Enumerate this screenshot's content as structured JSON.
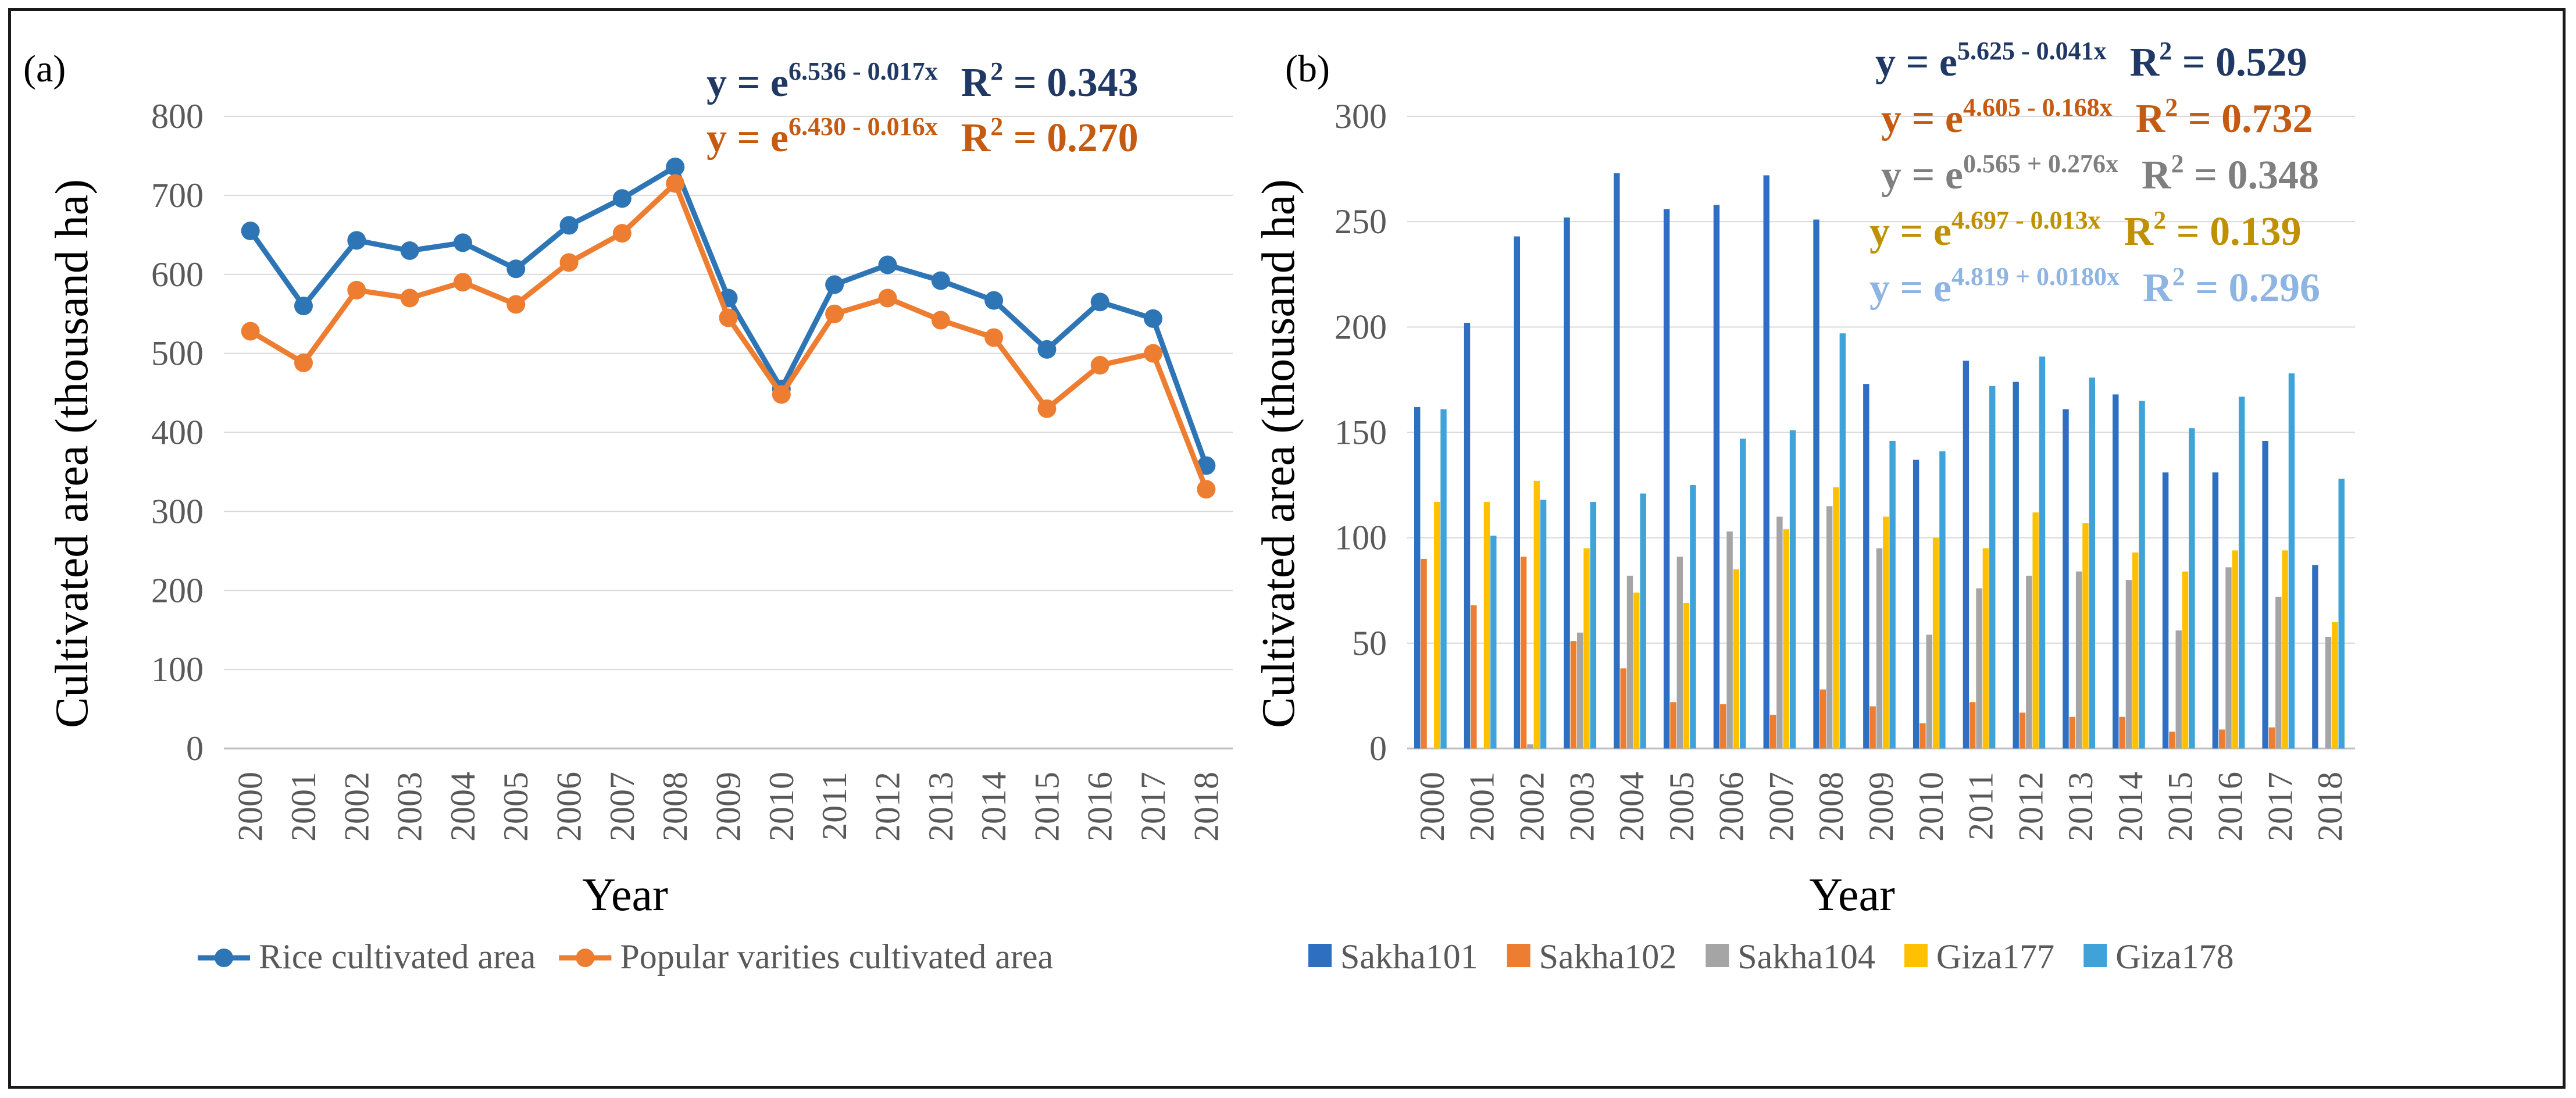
{
  "chart_data": [
    {
      "type": "line",
      "panel_label": "(a)",
      "xlabel": "Year",
      "ylabel": "Cultivated area (thousand ha)",
      "ylim": [
        0,
        800
      ],
      "yticks": [
        "0",
        "100",
        "200",
        "300",
        "400",
        "500",
        "600",
        "700",
        "800"
      ],
      "categories": [
        "2000",
        "2001",
        "2002",
        "2003",
        "2004",
        "2005",
        "2006",
        "2007",
        "2008",
        "2009",
        "2010",
        "2011",
        "2012",
        "2013",
        "2014",
        "2015",
        "2016",
        "2017",
        "2018"
      ],
      "grid": true,
      "legend_position": "bottom",
      "series": [
        {
          "name": "Rice cultivated  area",
          "color": "#2e75b6",
          "values": [
            655,
            560,
            643,
            630,
            640,
            607,
            662,
            696,
            736,
            570,
            455,
            587,
            612,
            592,
            567,
            505,
            565,
            544,
            358
          ]
        },
        {
          "name": "Popular varities cultivated area",
          "color": "#ed7d31",
          "values": [
            528,
            488,
            580,
            570,
            590,
            562,
            615,
            652,
            715,
            545,
            448,
            550,
            570,
            542,
            520,
            430,
            485,
            500,
            328
          ]
        }
      ],
      "equations": [
        {
          "base": "y = e",
          "exponent": "6.536 - 0.017x",
          "r2_label": "R",
          "r2_sup": "2",
          "r2_value": " = 0.343",
          "color": "#1f3864"
        },
        {
          "base": "y = e",
          "exponent": "6.430 - 0.016x",
          "r2_label": "R",
          "r2_sup": "2",
          "r2_value": " = 0.270",
          "color": "#c55a11"
        }
      ]
    },
    {
      "type": "bar",
      "panel_label": "(b)",
      "xlabel": "Year",
      "ylabel": "Cultivated area (thousand ha)",
      "ylim": [
        0,
        300
      ],
      "yticks": [
        "0",
        "50",
        "100",
        "150",
        "200",
        "250",
        "300"
      ],
      "categories": [
        "2000",
        "2001",
        "2002",
        "2003",
        "2004",
        "2005",
        "2006",
        "2007",
        "2008",
        "2009",
        "2010",
        "2011",
        "2012",
        "2013",
        "2014",
        "2015",
        "2016",
        "2017",
        "2018"
      ],
      "grid": true,
      "legend_position": "bottom",
      "series": [
        {
          "name": "Sakha101",
          "color": "#2e6fc2",
          "values": [
            162,
            202,
            243,
            252,
            273,
            256,
            258,
            272,
            251,
            173,
            137,
            184,
            174,
            161,
            168,
            131,
            131,
            146,
            87
          ]
        },
        {
          "name": "Sakha102",
          "color": "#ed7d31",
          "values": [
            90,
            68,
            91,
            51,
            38,
            22,
            21,
            16,
            28,
            20,
            12,
            22,
            17,
            15,
            15,
            8,
            9,
            10,
            0
          ]
        },
        {
          "name": "Sakha104",
          "color": "#a5a5a5",
          "values": [
            0,
            0,
            2,
            55,
            82,
            91,
            103,
            110,
            115,
            95,
            54,
            76,
            82,
            84,
            80,
            56,
            86,
            72,
            53
          ]
        },
        {
          "name": "Giza177",
          "color": "#ffc000",
          "values": [
            117,
            117,
            127,
            95,
            74,
            69,
            85,
            104,
            124,
            110,
            100,
            95,
            112,
            107,
            93,
            84,
            94,
            94,
            60
          ]
        },
        {
          "name": "Giza178",
          "color": "#3fa2d8",
          "values": [
            161,
            101,
            118,
            117,
            121,
            125,
            147,
            151,
            197,
            146,
            141,
            172,
            186,
            176,
            165,
            152,
            167,
            178,
            128
          ]
        }
      ],
      "equations": [
        {
          "base": "y = e",
          "exponent": "5.625 - 0.041x",
          "r2_label": "R",
          "r2_sup": "2",
          "r2_value": " = 0.529",
          "color": "#1f3864"
        },
        {
          "base": "y = e",
          "exponent": "4.605 - 0.168x",
          "r2_label": "R",
          "r2_sup": "2",
          "r2_value": " = 0.732",
          "color": "#c55a11"
        },
        {
          "base": "y = e",
          "exponent": "0.565 + 0.276x",
          "r2_label": "R",
          "r2_sup": "2",
          "r2_value": " = 0.348",
          "color": "#7f7f7f"
        },
        {
          "base": "y = e",
          "exponent": "4.697 - 0.013x",
          "r2_label": "R",
          "r2_sup": "2",
          "r2_value": " = 0.139",
          "color": "#bf9000"
        },
        {
          "base": "y = e",
          "exponent": "4.819 + 0.0180x",
          "r2_label": "R",
          "r2_sup": "2",
          "r2_value": " = 0.296",
          "color": "#8eb4e3"
        }
      ]
    }
  ]
}
